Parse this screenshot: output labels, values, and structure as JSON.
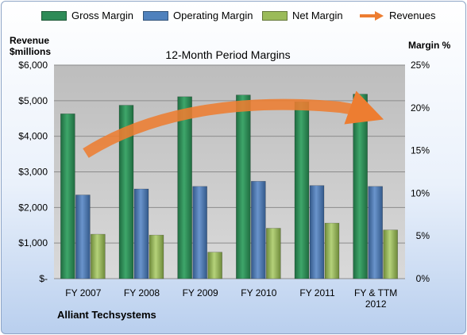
{
  "chart_data": {
    "type": "bar",
    "title": "12-Month Period Margins",
    "categories": [
      "FY 2007",
      "FY 2008",
      "FY 2009",
      "FY 2010",
      "FY 2011",
      "FY & TTM 2012"
    ],
    "series": [
      {
        "name": "Gross Margin",
        "axis": "right",
        "unit": "%",
        "values": [
          19.3,
          20.3,
          21.3,
          21.5,
          20.7,
          21.6
        ],
        "color": "#2e8b57"
      },
      {
        "name": "Operating Margin",
        "axis": "right",
        "unit": "%",
        "values": [
          9.8,
          10.5,
          10.8,
          11.4,
          10.9,
          10.8
        ],
        "color": "#4f81bd"
      },
      {
        "name": "Net Margin",
        "axis": "right",
        "unit": "%",
        "values": [
          5.2,
          5.1,
          3.1,
          5.9,
          6.5,
          5.7
        ],
        "color": "#9bbb59"
      }
    ],
    "revenues": {
      "name": "Revenues",
      "axis": "left",
      "color": "#ed7d31",
      "note": "drawn as a curved arrow trend, no exact values shown"
    },
    "left_axis": {
      "title_line1": "Revenue",
      "title_line2": "$millions",
      "range": [
        0,
        6000
      ],
      "ticks": [
        "$-",
        "$1,000",
        "$2,000",
        "$3,000",
        "$4,000",
        "$5,000",
        "$6,000"
      ]
    },
    "right_axis": {
      "title": "Margin %",
      "range": [
        0,
        25
      ],
      "ticks": [
        "0%",
        "5%",
        "10%",
        "15%",
        "20%",
        "25%"
      ]
    },
    "grid": true,
    "legend_position": "top"
  },
  "company_name": "Alliant Techsystems"
}
